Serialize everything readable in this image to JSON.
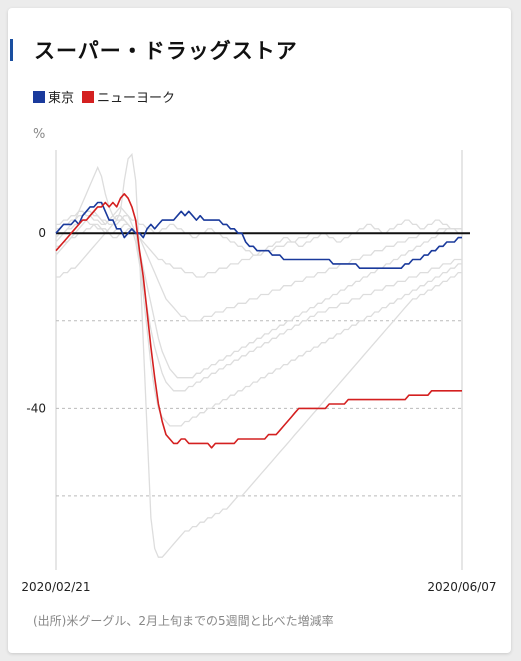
{
  "chart_data": {
    "type": "line",
    "title": "スーパー・ドラッグストア",
    "unit_label": "%",
    "legend": [
      {
        "name": "東京",
        "color": "#1a3a9c"
      },
      {
        "name": "ニューヨーク",
        "color": "#d42020"
      }
    ],
    "x_start_label": "2020/02/21",
    "x_end_label": "2020/06/07",
    "y_ticks": [
      0,
      -40
    ],
    "gridlines": [
      -20,
      -60
    ],
    "ylim": [
      -76,
      19
    ],
    "n_points": 108,
    "series": [
      {
        "name": "東京",
        "color": "#1a3a9c",
        "values": [
          0,
          1,
          2,
          2,
          2,
          3,
          2,
          4,
          5,
          6,
          6,
          7,
          7,
          5,
          3,
          3,
          1,
          1,
          -1,
          0,
          1,
          0,
          0,
          -1,
          1,
          2,
          1,
          2,
          3,
          3,
          3,
          3,
          4,
          5,
          4,
          5,
          4,
          3,
          4,
          3,
          3,
          3,
          3,
          3,
          2,
          2,
          1,
          1,
          0,
          0,
          -2,
          -3,
          -3,
          -4,
          -4,
          -4,
          -4,
          -5,
          -5,
          -5,
          -6,
          -6,
          -6,
          -6,
          -6,
          -6,
          -6,
          -6,
          -6,
          -6,
          -6,
          -6,
          -6,
          -7,
          -7,
          -7,
          -7,
          -7,
          -7,
          -7,
          -8,
          -8,
          -8,
          -8,
          -8,
          -8,
          -8,
          -8,
          -8,
          -8,
          -8,
          -8,
          -7,
          -7,
          -6,
          -6,
          -6,
          -5,
          -5,
          -4,
          -4,
          -3,
          -3,
          -2,
          -2,
          -2,
          -1,
          -1
        ]
      },
      {
        "name": "ニューヨーク",
        "color": "#d42020",
        "values": [
          -4,
          -3,
          -2,
          -1,
          0,
          1,
          2,
          3,
          3,
          4,
          5,
          6,
          6,
          7,
          6,
          7,
          6,
          8,
          9,
          8,
          6,
          3,
          -4,
          -10,
          -18,
          -26,
          -33,
          -39,
          -43,
          -46,
          -47,
          -48,
          -48,
          -47,
          -47,
          -48,
          -48,
          -48,
          -48,
          -48,
          -48,
          -49,
          -48,
          -48,
          -48,
          -48,
          -48,
          -48,
          -47,
          -47,
          -47,
          -47,
          -47,
          -47,
          -47,
          -47,
          -46,
          -46,
          -46,
          -45,
          -44,
          -43,
          -42,
          -41,
          -40,
          -40,
          -40,
          -40,
          -40,
          -40,
          -40,
          -40,
          -39,
          -39,
          -39,
          -39,
          -39,
          -38,
          -38,
          -38,
          -38,
          -38,
          -38,
          -38,
          -38,
          -38,
          -38,
          -38,
          -38,
          -38,
          -38,
          -38,
          -38,
          -37,
          -37,
          -37,
          -37,
          -37,
          -37,
          -36,
          -36,
          -36,
          -36,
          -36,
          -36,
          -36,
          -36,
          -36
        ]
      }
    ],
    "background_series": [
      {
        "values": [
          -2,
          -1,
          0,
          1,
          2,
          3,
          5,
          7,
          9,
          11,
          13,
          15,
          13,
          9,
          6,
          4,
          3,
          5,
          12,
          17,
          18,
          12,
          -5,
          -25,
          -45,
          -65,
          -72,
          -74,
          -74,
          -73,
          -72,
          -71,
          -70,
          -69,
          -68,
          -68,
          -67,
          -67,
          -66,
          -66,
          -65,
          -65,
          -64,
          -64,
          -63,
          -63,
          -62,
          -61,
          -60,
          -60,
          -59,
          -58,
          -57,
          -56,
          -55,
          -54,
          -53,
          -52,
          -51,
          -50,
          -49,
          -48,
          -47,
          -46,
          -45,
          -44,
          -43,
          -42,
          -41,
          -40,
          -39,
          -38,
          -37,
          -36,
          -35,
          -34,
          -33,
          -32,
          -31,
          -30,
          -29,
          -28,
          -27,
          -26,
          -25,
          -24,
          -23,
          -22,
          -21,
          -20,
          -19,
          -18,
          -17,
          -16,
          -15,
          -15,
          -14,
          -14,
          -13,
          -13,
          -12,
          -12,
          -11,
          -11,
          -10,
          -10,
          -9,
          -9
        ]
      },
      {
        "values": [
          -5,
          -4,
          -3,
          -2,
          -1,
          0,
          1,
          2,
          3,
          4,
          5,
          4,
          3,
          2,
          3,
          4,
          5,
          6,
          5,
          4,
          2,
          0,
          -6,
          -14,
          -22,
          -30,
          -36,
          -40,
          -42,
          -43,
          -44,
          -44,
          -44,
          -44,
          -43,
          -43,
          -42,
          -42,
          -41,
          -41,
          -40,
          -40,
          -39,
          -39,
          -38,
          -38,
          -37,
          -37,
          -36,
          -36,
          -35,
          -35,
          -34,
          -34,
          -33,
          -33,
          -32,
          -32,
          -31,
          -31,
          -30,
          -30,
          -29,
          -29,
          -28,
          -28,
          -27,
          -27,
          -26,
          -26,
          -25,
          -25,
          -24,
          -24,
          -23,
          -23,
          -22,
          -22,
          -21,
          -21,
          -20,
          -20,
          -19,
          -19,
          -18,
          -18,
          -17,
          -17,
          -16,
          -16,
          -15,
          -15,
          -14,
          -14,
          -13,
          -13,
          -12,
          -12,
          -11,
          -11,
          -10,
          -10,
          -9,
          -9,
          -8,
          -8,
          -7,
          -7
        ]
      },
      {
        "values": [
          -10,
          -10,
          -9,
          -9,
          -8,
          -8,
          -7,
          -6,
          -5,
          -4,
          -3,
          -2,
          -1,
          0,
          1,
          2,
          2,
          3,
          3,
          2,
          1,
          -2,
          -7,
          -12,
          -17,
          -22,
          -26,
          -29,
          -32,
          -34,
          -35,
          -36,
          -36,
          -36,
          -36,
          -35,
          -35,
          -34,
          -34,
          -33,
          -33,
          -32,
          -32,
          -31,
          -31,
          -30,
          -30,
          -29,
          -29,
          -28,
          -28,
          -27,
          -27,
          -26,
          -26,
          -25,
          -25,
          -24,
          -24,
          -23,
          -23,
          -22,
          -22,
          -21,
          -21,
          -20,
          -20,
          -19,
          -19,
          -18,
          -18,
          -18,
          -17,
          -17,
          -17,
          -16,
          -16,
          -16,
          -15,
          -15,
          -15,
          -14,
          -14,
          -14,
          -13,
          -13,
          -13,
          -12,
          -12,
          -12,
          -11,
          -11,
          -11,
          -10,
          -10,
          -10,
          -9,
          -9,
          -9,
          -8,
          -8,
          -8,
          -7,
          -7,
          -7,
          -6,
          -6,
          -6
        ]
      },
      {
        "values": [
          2,
          2,
          3,
          3,
          4,
          4,
          5,
          5,
          4,
          4,
          3,
          3,
          2,
          2,
          3,
          3,
          4,
          4,
          3,
          2,
          1,
          0,
          -4,
          -8,
          -12,
          -16,
          -20,
          -24,
          -27,
          -29,
          -31,
          -32,
          -33,
          -33,
          -33,
          -33,
          -33,
          -32,
          -32,
          -31,
          -31,
          -30,
          -30,
          -29,
          -29,
          -28,
          -28,
          -27,
          -27,
          -26,
          -26,
          -25,
          -25,
          -24,
          -24,
          -23,
          -23,
          -22,
          -22,
          -21,
          -21,
          -20,
          -20,
          -19,
          -19,
          -18,
          -18,
          -17,
          -17,
          -16,
          -16,
          -15,
          -15,
          -14,
          -14,
          -13,
          -13,
          -12,
          -12,
          -11,
          -11,
          -10,
          -10,
          -9,
          -9,
          -8,
          -8,
          -7,
          -7,
          -6,
          -6,
          -5,
          -5,
          -4,
          -4,
          -3,
          -3,
          -2,
          -2,
          -1,
          -1,
          0,
          0,
          1,
          1,
          1,
          1,
          1
        ]
      },
      {
        "values": [
          1,
          1,
          2,
          2,
          3,
          3,
          4,
          4,
          5,
          5,
          4,
          4,
          3,
          3,
          2,
          2,
          3,
          3,
          4,
          4,
          3,
          3,
          2,
          2,
          1,
          1,
          0,
          0,
          1,
          1,
          2,
          2,
          1,
          1,
          0,
          0,
          -1,
          -1,
          0,
          0,
          1,
          1,
          0,
          0,
          -1,
          -1,
          -2,
          -2,
          -3,
          -3,
          -4,
          -4,
          -5,
          -5,
          -4,
          -4,
          -3,
          -3,
          -2,
          -2,
          -1,
          -1,
          -2,
          -2,
          -3,
          -3,
          -2,
          -2,
          -1,
          -1,
          0,
          0,
          -1,
          -1,
          -2,
          -2,
          -1,
          -1,
          0,
          0,
          1,
          1,
          2,
          2,
          1,
          1,
          0,
          0,
          1,
          1,
          2,
          2,
          3,
          3,
          2,
          2,
          1,
          1,
          2,
          2,
          3,
          3,
          2,
          2,
          1,
          1,
          0,
          0
        ]
      },
      {
        "values": [
          -1,
          0,
          0,
          1,
          1,
          2,
          2,
          3,
          3,
          2,
          2,
          1,
          1,
          0,
          0,
          -1,
          -1,
          0,
          0,
          1,
          1,
          0,
          -1,
          -2,
          -3,
          -4,
          -5,
          -6,
          -6,
          -7,
          -7,
          -8,
          -8,
          -8,
          -9,
          -9,
          -9,
          -10,
          -10,
          -10,
          -9,
          -9,
          -9,
          -8,
          -8,
          -8,
          -7,
          -7,
          -7,
          -6,
          -6,
          -6,
          -5,
          -5,
          -5,
          -4,
          -4,
          -4,
          -3,
          -3,
          -3,
          -2,
          -2,
          -2,
          -1,
          -1,
          -1,
          0,
          0,
          0,
          0,
          0,
          0,
          0,
          0,
          0,
          0,
          0,
          0,
          0,
          0,
          0,
          0,
          0,
          0,
          0,
          0,
          0,
          0,
          0,
          0,
          0,
          0,
          0,
          0,
          0,
          0,
          0,
          0,
          0,
          0,
          0,
          0,
          0,
          0,
          0,
          0,
          0
        ]
      },
      {
        "values": [
          -3,
          -3,
          -2,
          -2,
          -1,
          -1,
          0,
          0,
          1,
          1,
          2,
          2,
          1,
          1,
          0,
          0,
          1,
          1,
          2,
          2,
          1,
          0,
          -1,
          -3,
          -5,
          -7,
          -9,
          -11,
          -13,
          -15,
          -16,
          -17,
          -18,
          -19,
          -19,
          -20,
          -20,
          -20,
          -20,
          -19,
          -19,
          -19,
          -18,
          -18,
          -18,
          -17,
          -17,
          -17,
          -16,
          -16,
          -16,
          -15,
          -15,
          -15,
          -14,
          -14,
          -14,
          -13,
          -13,
          -13,
          -12,
          -12,
          -12,
          -11,
          -11,
          -11,
          -10,
          -10,
          -10,
          -9,
          -9,
          -9,
          -8,
          -8,
          -8,
          -7,
          -7,
          -7,
          -6,
          -6,
          -6,
          -5,
          -5,
          -5,
          -4,
          -4,
          -4,
          -3,
          -3,
          -3,
          -2,
          -2,
          -2,
          -1,
          -1,
          -1,
          0,
          0,
          0,
          0,
          0,
          1,
          1,
          1,
          1,
          1,
          1,
          1
        ]
      }
    ]
  },
  "source_note": "(出所)米グーグル、2月上旬までの5週間と比べた増減率"
}
